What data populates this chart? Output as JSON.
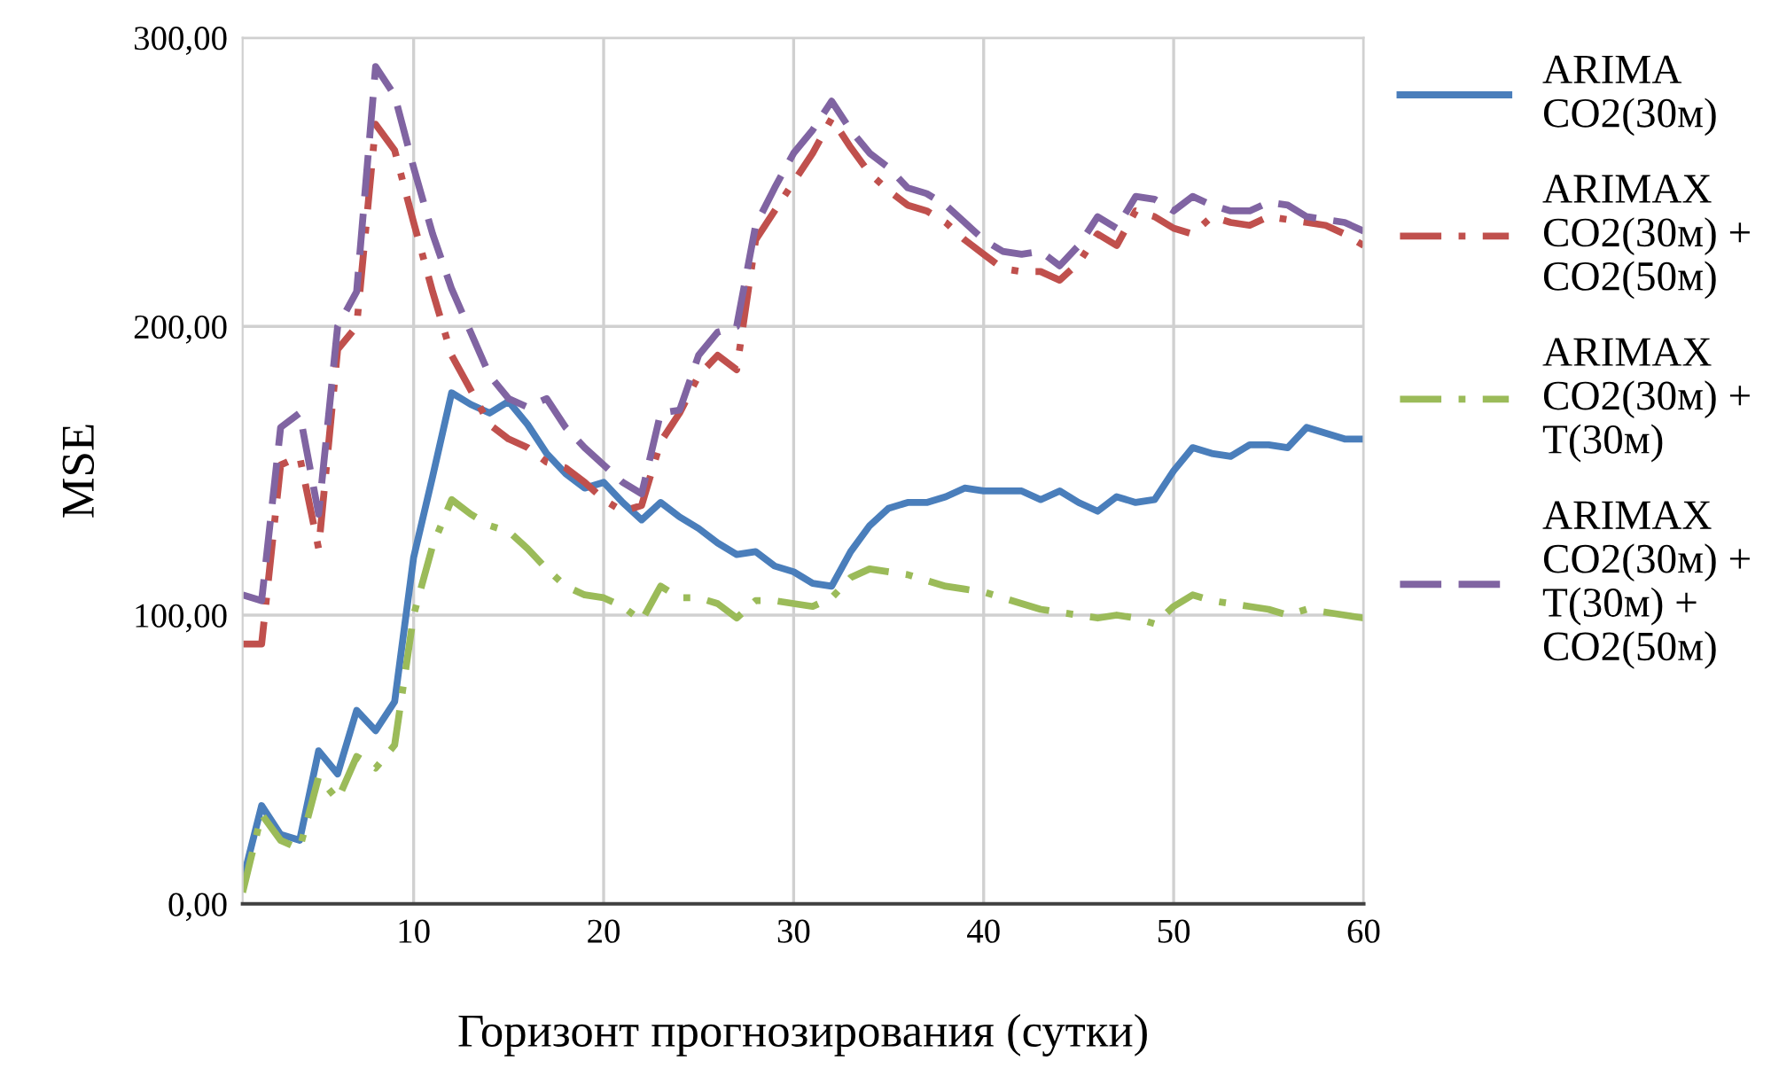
{
  "chart_data": {
    "type": "line",
    "xlabel": "Горизонт прогнозирования (сутки)",
    "ylabel": "MSE",
    "x": [
      1,
      2,
      3,
      4,
      5,
      6,
      7,
      8,
      9,
      10,
      11,
      12,
      13,
      14,
      15,
      16,
      17,
      18,
      19,
      20,
      21,
      22,
      23,
      24,
      25,
      26,
      27,
      28,
      29,
      30,
      31,
      32,
      33,
      34,
      35,
      36,
      37,
      38,
      39,
      40,
      41,
      42,
      43,
      44,
      45,
      46,
      47,
      48,
      49,
      50,
      51,
      52,
      53,
      54,
      55,
      56,
      57,
      58,
      59,
      60
    ],
    "series": [
      {
        "name": "ARIMA\nCO2(30м)",
        "color": "#4a7ebb",
        "line_style": "solid",
        "values": [
          8,
          34,
          24,
          22,
          53,
          45,
          67,
          60,
          70,
          120,
          148,
          177,
          173,
          170,
          174,
          166,
          156,
          149,
          144,
          146,
          139,
          133,
          139,
          134,
          130,
          125,
          121,
          122,
          117,
          115,
          111,
          110,
          122,
          131,
          137,
          139,
          139,
          141,
          144,
          143,
          143,
          143,
          140,
          143,
          139,
          136,
          141,
          139,
          140,
          150,
          158,
          156,
          155,
          159,
          159,
          158,
          165,
          163,
          161,
          161
        ]
      },
      {
        "name": "ARIMAX\nCO2(30м) +\nCO2(50м)",
        "color": "#c0504d",
        "line_style": "dashdot",
        "values": [
          90,
          90,
          152,
          155,
          123,
          192,
          200,
          270,
          261,
          236,
          212,
          190,
          178,
          166,
          161,
          158,
          153,
          151,
          146,
          140,
          136,
          138,
          160,
          170,
          183,
          190,
          185,
          230,
          240,
          250,
          260,
          272,
          262,
          253,
          247,
          242,
          240,
          236,
          230,
          225,
          220,
          219,
          219,
          216,
          222,
          232,
          228,
          240,
          238,
          234,
          232,
          238,
          236,
          235,
          238,
          237,
          236,
          235,
          232,
          228
        ]
      },
      {
        "name": "ARIMAX\nCO2(30м) +\nT(30м)",
        "color": "#9bbb59",
        "line_style": "dashdot",
        "values": [
          4,
          31,
          22,
          19,
          44,
          36,
          51,
          47,
          55,
          100,
          124,
          140,
          135,
          131,
          129,
          123,
          116,
          110,
          107,
          106,
          103,
          98,
          110,
          106,
          106,
          104,
          99,
          105,
          105,
          104,
          103,
          106,
          113,
          116,
          115,
          114,
          112,
          110,
          109,
          108,
          106,
          104,
          102,
          101,
          100,
          99,
          100,
          99,
          97,
          103,
          107,
          105,
          104,
          103,
          102,
          100,
          102,
          101,
          100,
          99
        ]
      },
      {
        "name": "ARIMAX\nCO2(30м) +\nT(30м) +\nCO2(50м)",
        "color": "#8064a2",
        "line_style": "dashed",
        "values": [
          107,
          105,
          165,
          170,
          135,
          200,
          212,
          290,
          280,
          255,
          232,
          213,
          198,
          183,
          175,
          172,
          175,
          165,
          158,
          152,
          146,
          142,
          170,
          171,
          190,
          198,
          200,
          235,
          248,
          260,
          268,
          278,
          268,
          260,
          255,
          248,
          246,
          242,
          236,
          230,
          226,
          225,
          226,
          221,
          228,
          238,
          234,
          245,
          244,
          240,
          245,
          242,
          240,
          240,
          243,
          242,
          238,
          237,
          236,
          233
        ]
      }
    ],
    "xlim": [
      1,
      60
    ],
    "xticks": [
      10,
      20,
      30,
      40,
      50,
      60
    ],
    "ylim": [
      0,
      300
    ],
    "yticks": [
      {
        "value": 0,
        "label": "0,00"
      },
      {
        "value": 100,
        "label": "100,00"
      },
      {
        "value": 200,
        "label": "200,00"
      },
      {
        "value": 300,
        "label": "300,00"
      }
    ],
    "grid": true,
    "legend": "right"
  }
}
